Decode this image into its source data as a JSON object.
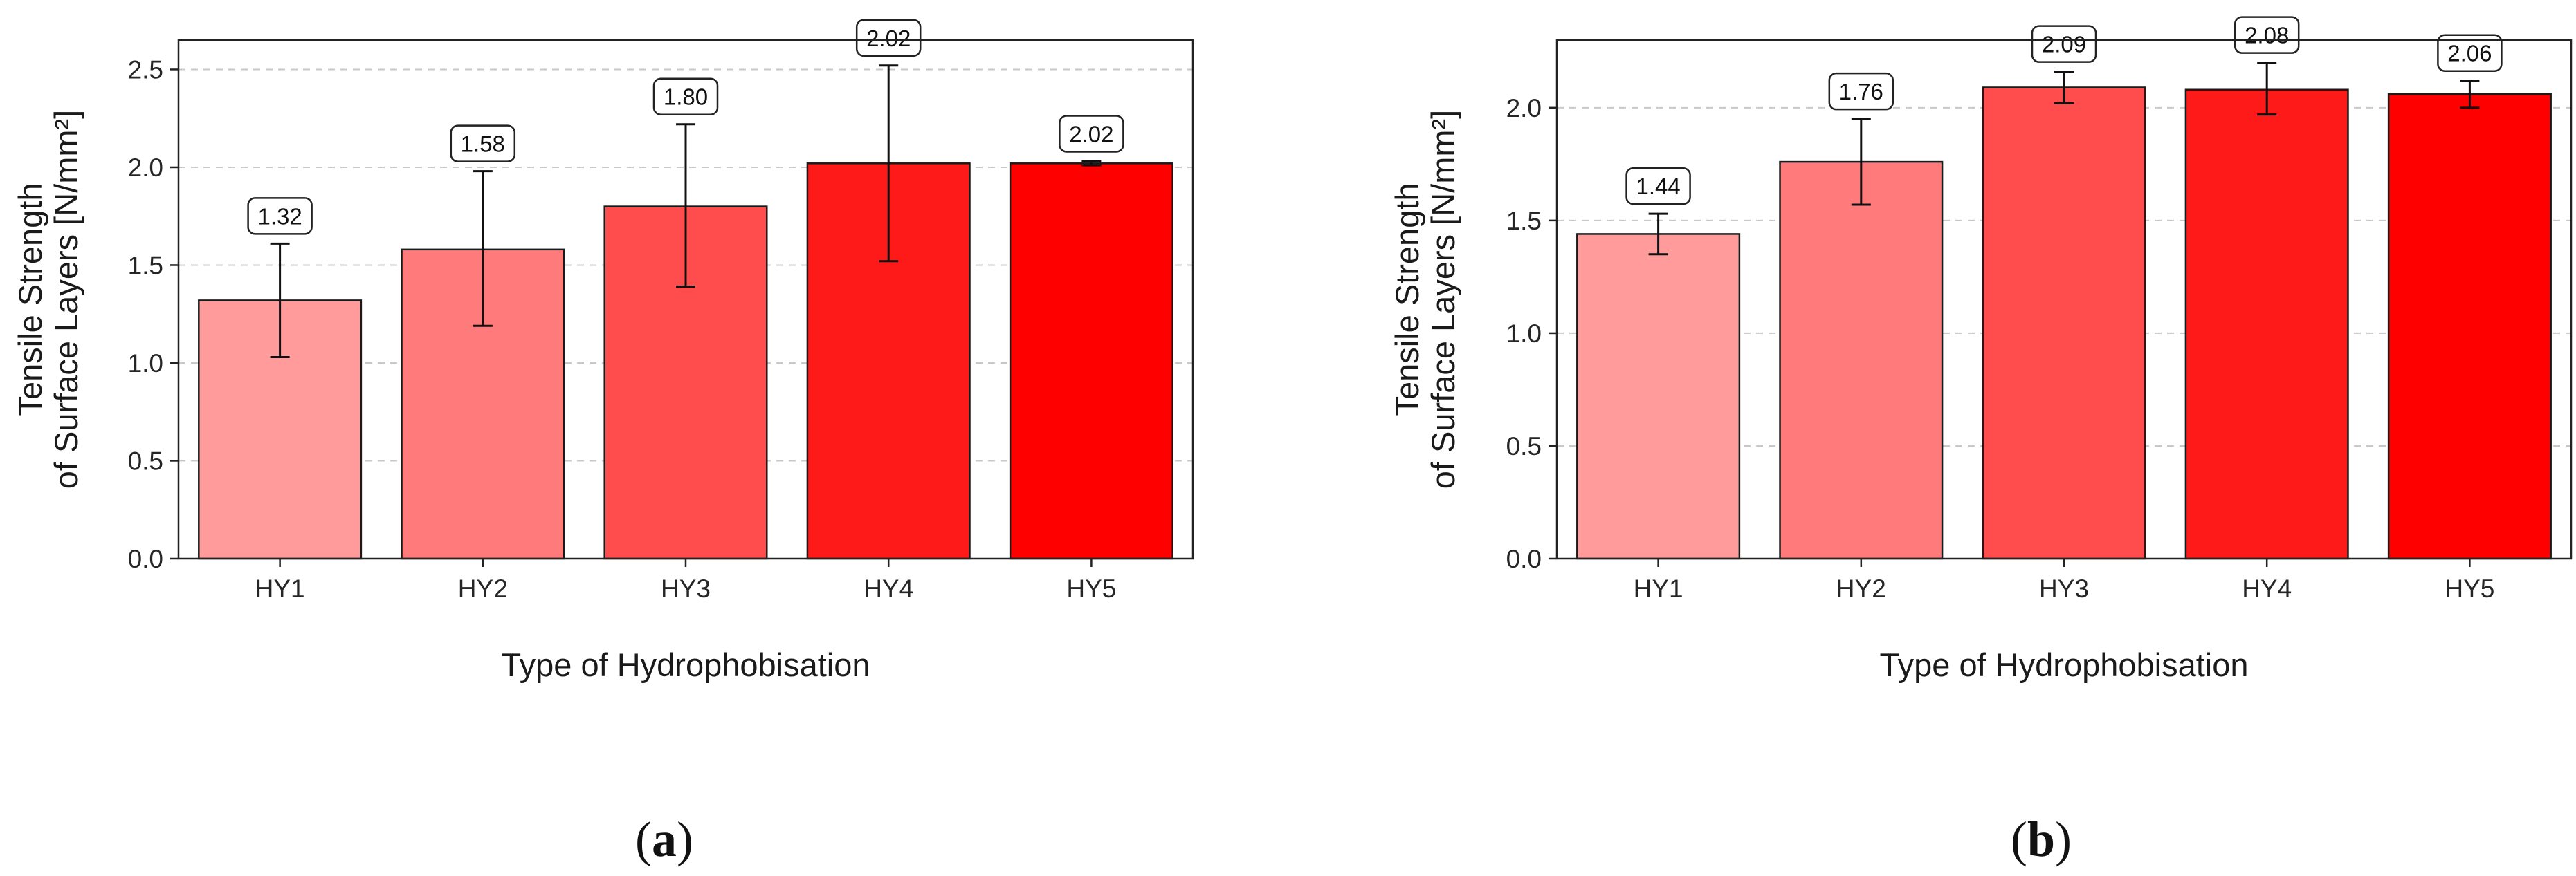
{
  "chart_data": [
    {
      "id": "a",
      "type": "bar",
      "categories": [
        "HY1",
        "HY2",
        "HY3",
        "HY4",
        "HY5"
      ],
      "values": [
        1.32,
        1.58,
        1.8,
        2.02,
        2.02
      ],
      "error_low": [
        1.03,
        1.19,
        1.39,
        1.52,
        2.01
      ],
      "error_high": [
        1.61,
        1.98,
        2.22,
        2.52,
        2.03
      ],
      "value_labels": [
        "1.32",
        "1.58",
        "1.80",
        "2.02",
        "2.02"
      ],
      "colors": [
        "#ff9b9b",
        "#ff7a7a",
        "#ff4c4c",
        "#ff1a1a",
        "#ff0000"
      ],
      "xlabel": "Type of Hydrophobisation",
      "ylabel_line1": "Tensile Strength",
      "ylabel_line2": "of Surface Layers [N/mm²]",
      "ylim": [
        0,
        2.65
      ],
      "yticks": [
        0.0,
        0.5,
        1.0,
        1.5,
        2.0,
        2.5
      ],
      "ytick_labels": [
        "0.0",
        "0.5",
        "1.0",
        "1.5",
        "2.0",
        "2.5"
      ],
      "grid": true,
      "caption_open": "(",
      "caption_letter": "a",
      "caption_close": ")"
    },
    {
      "id": "b",
      "type": "bar",
      "categories": [
        "HY1",
        "HY2",
        "HY3",
        "HY4",
        "HY5"
      ],
      "values": [
        1.44,
        1.76,
        2.09,
        2.08,
        2.06
      ],
      "error_low": [
        1.35,
        1.57,
        2.02,
        1.97,
        2.0
      ],
      "error_high": [
        1.53,
        1.95,
        2.16,
        2.2,
        2.12
      ],
      "value_labels": [
        "1.44",
        "1.76",
        "2.09",
        "2.08",
        "2.06"
      ],
      "colors": [
        "#ff9b9b",
        "#ff7a7a",
        "#ff4c4c",
        "#ff1a1a",
        "#ff0000"
      ],
      "xlabel": "Type of Hydrophobisation",
      "ylabel_line1": "Tensile Strength",
      "ylabel_line2": "of Surface Layers [N/mm²]",
      "ylim": [
        0,
        2.3
      ],
      "yticks": [
        0.0,
        0.5,
        1.0,
        1.5,
        2.0
      ],
      "ytick_labels": [
        "0.0",
        "0.5",
        "1.0",
        "1.5",
        "2.0"
      ],
      "grid": true,
      "caption_open": "(",
      "caption_letter": "b",
      "caption_close": ")"
    }
  ]
}
